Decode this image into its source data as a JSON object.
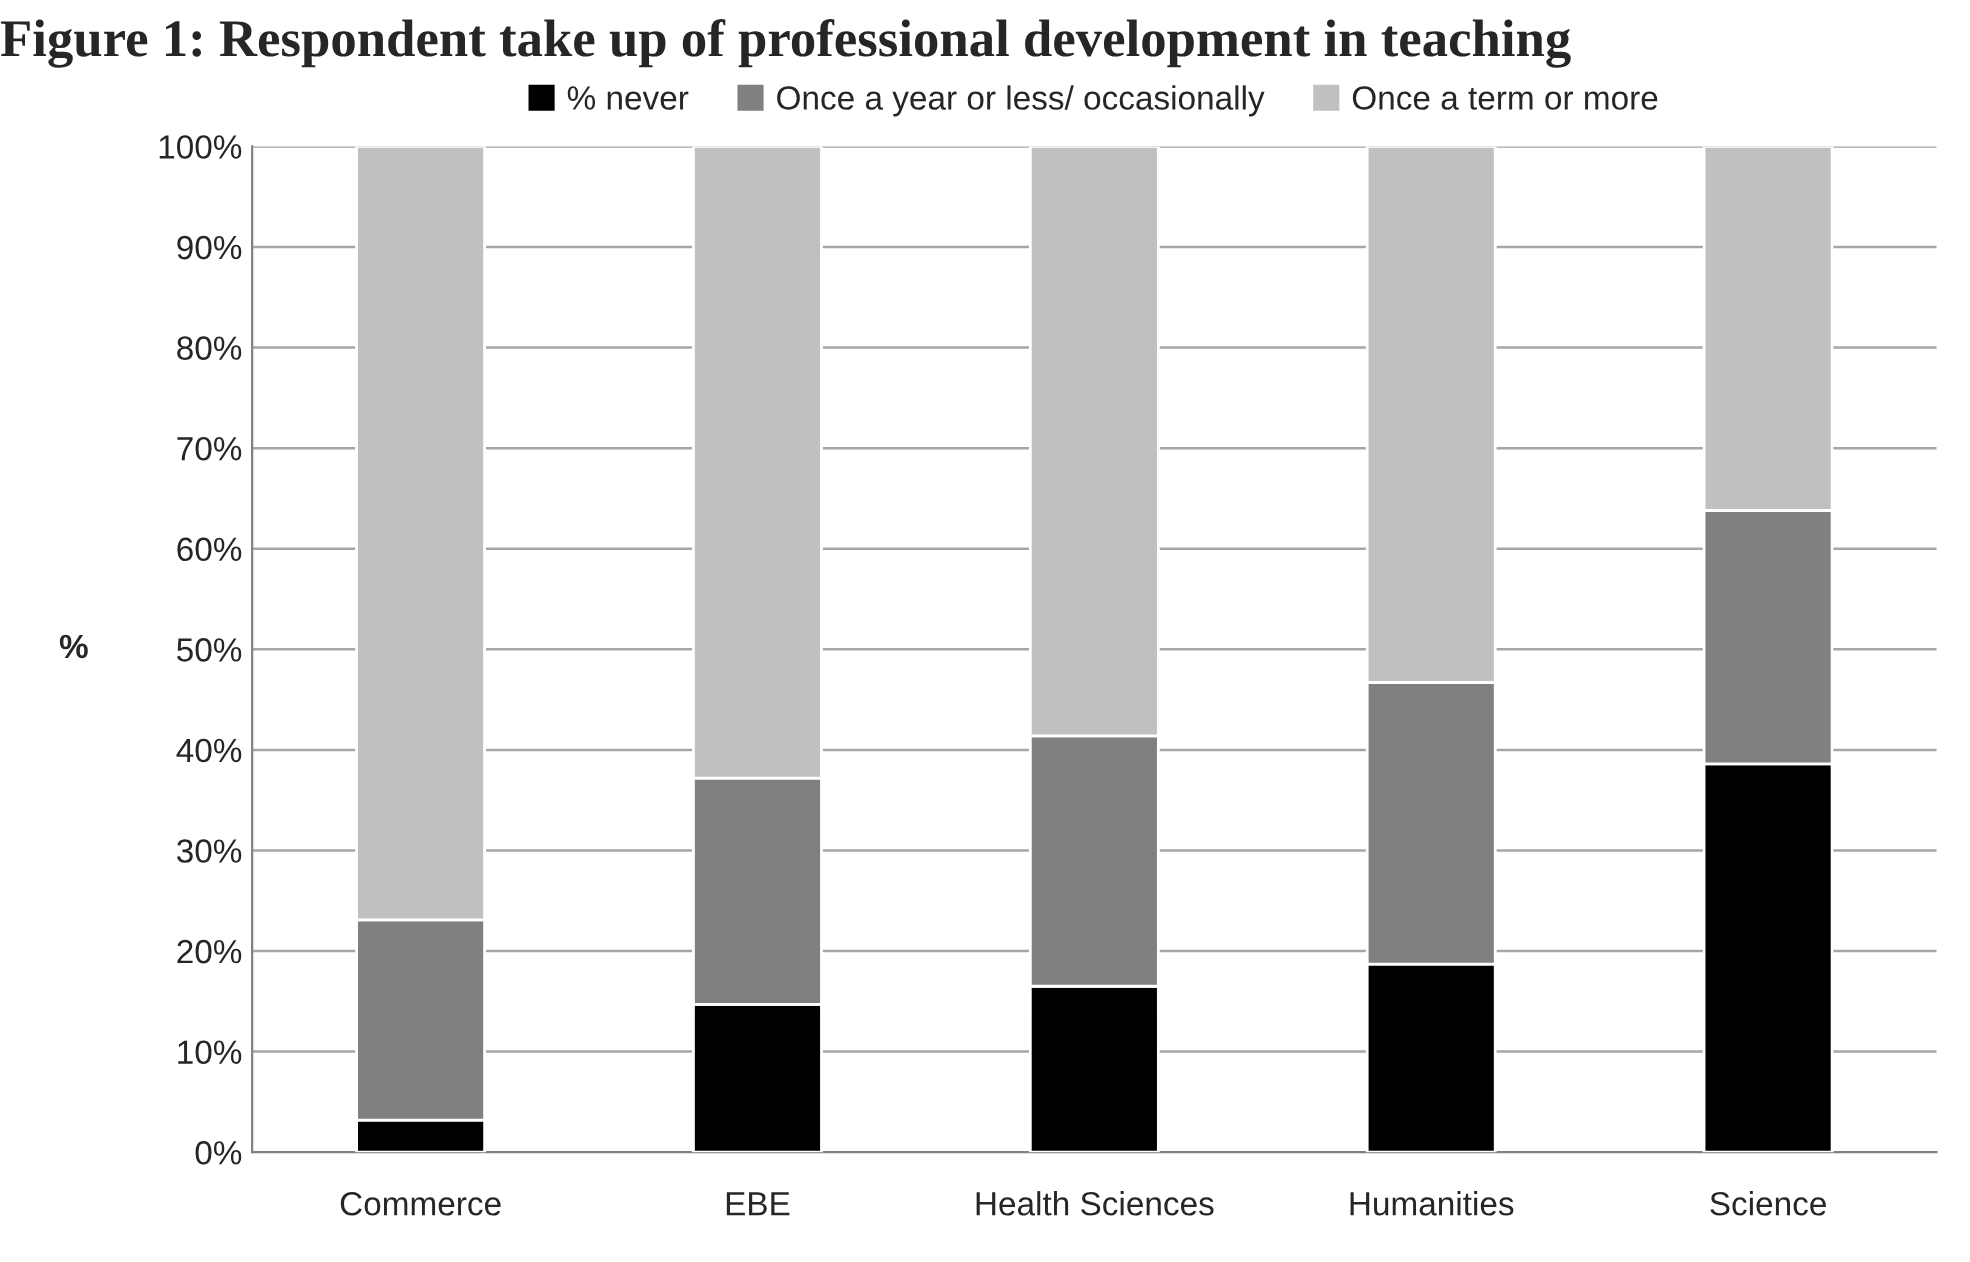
{
  "chart_data": {
    "type": "bar",
    "stacked": true,
    "title": "Figure 1: Respondent take up of professional development in teaching",
    "ylabel": "%",
    "categories": [
      "Commerce",
      "EBE",
      "Health Sciences",
      "Humanities",
      "Science"
    ],
    "series": [
      {
        "name": "% never",
        "color": "#000000",
        "values": [
          3.2,
          14.7,
          16.5,
          18.7,
          38.6
        ]
      },
      {
        "name": "Once a year or less/ occasionally",
        "color": "#808080",
        "values": [
          19.9,
          22.5,
          24.9,
          28.0,
          25.2
        ]
      },
      {
        "name": "Once a term or more",
        "color": "#c0c0c0",
        "values": [
          76.9,
          62.8,
          58.6,
          53.3,
          36.2
        ]
      }
    ],
    "ylim": [
      0,
      100
    ],
    "yticks": [
      {
        "value": 0,
        "label": "0%"
      },
      {
        "value": 10,
        "label": "10%"
      },
      {
        "value": 20,
        "label": "20%"
      },
      {
        "value": 30,
        "label": "30%"
      },
      {
        "value": 40,
        "label": "40%"
      },
      {
        "value": 50,
        "label": "50%"
      },
      {
        "value": 60,
        "label": "60%"
      },
      {
        "value": 70,
        "label": "70%"
      },
      {
        "value": 80,
        "label": "80%"
      },
      {
        "value": 90,
        "label": "90%"
      },
      {
        "value": 100,
        "label": "100%"
      }
    ],
    "grid": "y",
    "legend": "top"
  }
}
